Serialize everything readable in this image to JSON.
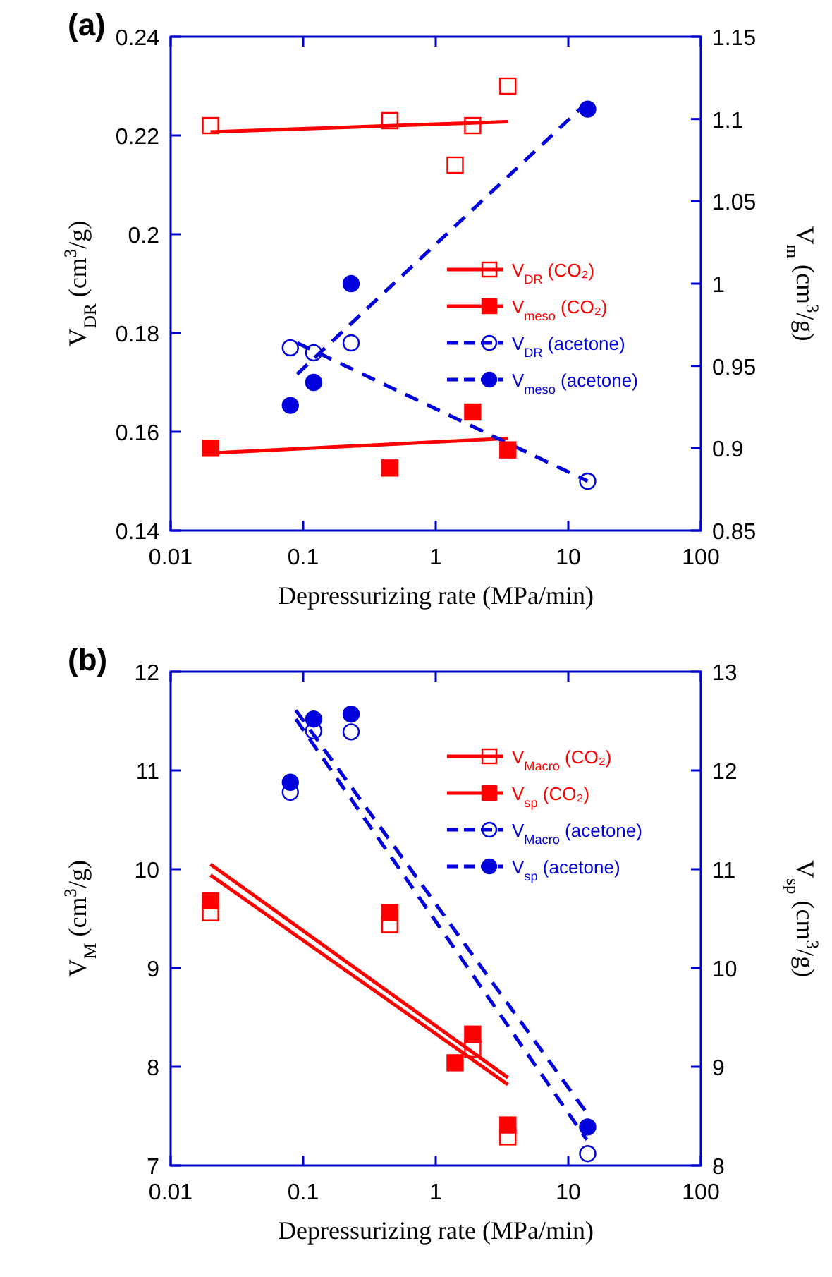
{
  "chart_data": [
    {
      "type": "scatter",
      "title": "(a)",
      "xlabel": "Depressurizing rate (MPa/min)",
      "ylabel": "V$_{DR}$ (cm$^{3}$/g)",
      "y2label": "V$_{m}$ (cm$^{3}$/g)",
      "log": "x",
      "xlim": [
        0.01,
        100
      ],
      "xticks": [
        0.01,
        0.1,
        1,
        10,
        100
      ],
      "ylim": [
        0.14,
        0.24
      ],
      "yticks": [
        0.14,
        0.16,
        0.18,
        0.2,
        0.22,
        0.24
      ],
      "y2lim": [
        0.85,
        1.15
      ],
      "y2ticks": [
        0.85,
        0.9,
        0.95,
        1,
        1.05,
        1.1,
        1.15
      ],
      "legend": "right",
      "series": [
        {
          "name": "V$_{DR}$ (CO₂)",
          "color": "#ff0000",
          "marker": "square",
          "line_style": "solid",
          "axis": "y",
          "x": [
            0.02,
            0.45,
            1.4,
            1.9,
            3.5
          ],
          "values": [
            0.222,
            0.223,
            0.214,
            0.222,
            0.23
          ]
        },
        {
          "name": "V$_{meso}$ (CO₂)",
          "color": "#ff0000",
          "marker": "square",
          "line_style": "solid",
          "axis": "y2",
          "x": [
            0.02,
            0.45,
            1.9,
            3.5
          ],
          "values": [
            0.9,
            0.888,
            0.922,
            0.899
          ]
        },
        {
          "name": "V$_{DR}$ (acetone)",
          "color": "#0000dd",
          "marker": "circle",
          "line_style": "dashed",
          "axis": "y",
          "x": [
            0.08,
            0.12,
            0.23,
            14
          ],
          "values": [
            0.177,
            0.176,
            0.178,
            0.15
          ]
        },
        {
          "name": "V$_{meso}$ (acetone)",
          "color": "#0000dd",
          "marker": "circle",
          "line_style": "dashed",
          "axis": "y2",
          "x": [
            0.08,
            0.12,
            0.23,
            14
          ],
          "values": [
            0.926,
            0.94,
            1.0,
            1.106
          ]
        },
        {
          "type": "line",
          "color": "#ff0000",
          "line_style": "solid",
          "axis": "y",
          "x": [
            0.02,
            3.5
          ],
          "values": [
            0.2207,
            0.2228
          ]
        },
        {
          "type": "line",
          "color": "#ff0000",
          "line_style": "solid",
          "axis": "y2",
          "x": [
            0.02,
            3.5
          ],
          "values": [
            0.897,
            0.906
          ]
        },
        {
          "type": "line",
          "color": "#0000dd",
          "line_style": "dashed",
          "axis": "y",
          "x": [
            0.09,
            14
          ],
          "values": [
            0.178,
            0.15
          ]
        },
        {
          "type": "line",
          "color": "#0000dd",
          "line_style": "dashed",
          "axis": "y2",
          "x": [
            0.09,
            13
          ],
          "values": [
            0.945,
            1.108
          ]
        }
      ]
    },
    {
      "type": "scatter",
      "title": "(b)",
      "xlabel": "Depressurizing rate (MPa/min)",
      "ylabel": "V$_{M}$ (cm$^{3}$/g)",
      "y2label": "V$_{sp}$ (cm$^{3}$/g)",
      "log": "x",
      "xlim": [
        0.01,
        100
      ],
      "xticks": [
        0.01,
        0.1,
        1,
        10,
        100
      ],
      "ylim": [
        7,
        12
      ],
      "yticks": [
        7,
        8,
        9,
        10,
        11,
        12
      ],
      "y2lim": [
        8,
        13
      ],
      "y2ticks": [
        8,
        9,
        10,
        11,
        12,
        13
      ],
      "legend": "top right",
      "series": [
        {
          "name": "V$_{Macro}$ (CO₂)",
          "color": "#ff0000",
          "marker": "square",
          "line_style": "solid",
          "axis": "y",
          "x": [
            0.02,
            0.45,
            1.9,
            3.5
          ],
          "values": [
            9.56,
            9.44,
            8.18,
            7.29
          ]
        },
        {
          "name": "V$_{sp}$ (CO₂)",
          "color": "#ff0000",
          "marker": "square",
          "line_style": "solid",
          "axis": "y2",
          "x": [
            0.02,
            0.45,
            1.4,
            1.9,
            3.5
          ],
          "values": [
            10.68,
            10.56,
            9.04,
            9.33,
            8.41
          ]
        },
        {
          "name": "V$_{Macro}$ (acetone)",
          "color": "#0000dd",
          "marker": "circle",
          "line_style": "dashed",
          "axis": "y",
          "x": [
            0.08,
            0.12,
            0.23,
            14
          ],
          "values": [
            10.78,
            11.4,
            11.39,
            7.12
          ]
        },
        {
          "name": "V$_{sp}$ (acetone)",
          "color": "#0000dd",
          "marker": "circle",
          "line_style": "dashed",
          "axis": "y2",
          "x": [
            0.08,
            0.12,
            0.23,
            14
          ],
          "values": [
            11.88,
            12.52,
            12.57,
            8.39
          ]
        },
        {
          "type": "line",
          "color": "#ff0000",
          "line_style": "solid",
          "axis": "y",
          "x": [
            0.02,
            3.5
          ],
          "values": [
            9.94,
            7.82
          ]
        },
        {
          "type": "line",
          "color": "#ff0000",
          "line_style": "solid",
          "axis": "y2",
          "x": [
            0.02,
            3.5
          ],
          "values": [
            11.05,
            8.89
          ]
        },
        {
          "type": "line",
          "color": "#0000dd",
          "line_style": "dashed",
          "axis": "y",
          "x": [
            0.088,
            13.8
          ],
          "values": [
            11.52,
            7.26
          ]
        },
        {
          "type": "line",
          "color": "#0000dd",
          "line_style": "dashed",
          "axis": "y2",
          "x": [
            0.088,
            13.8
          ],
          "values": [
            12.61,
            8.53
          ]
        }
      ]
    }
  ]
}
